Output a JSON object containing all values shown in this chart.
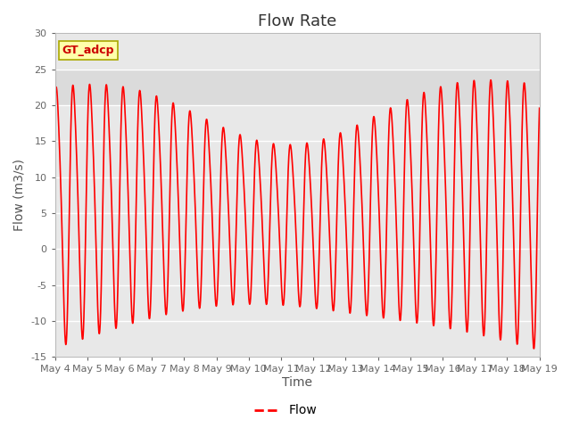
{
  "title": "Flow Rate",
  "xlabel": "Time",
  "ylabel": "Flow (m3/s)",
  "ylim": [
    -15,
    30
  ],
  "xlim_days": [
    0,
    15
  ],
  "x_tick_labels": [
    "May 4",
    "May 5",
    "May 6",
    "May 7",
    "May 8",
    "May 9",
    "May 10",
    "May 11",
    "May 12",
    "May 13",
    "May 14",
    "May 15",
    "May 16",
    "May 17",
    "May 18",
    "May 19"
  ],
  "line_color": "#ff0000",
  "shade_color": "#d3d3d3",
  "shade_alpha": 0.6,
  "shade_ymin": 20,
  "shade_ymax": 25,
  "gt_adcp_label": "GT_adcp",
  "gt_adcp_bg": "#ffffaa",
  "gt_adcp_border": "#aaa800",
  "legend_label": "Flow",
  "bg_color": "#ffffff",
  "plot_bg_color": "#e8e8e8",
  "grid_color": "#ffffff",
  "title_fontsize": 13,
  "axis_label_fontsize": 10,
  "tick_fontsize": 8,
  "line_width": 1.2
}
